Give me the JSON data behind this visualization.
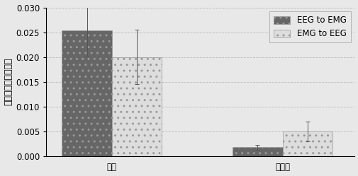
{
  "groups": [
    "患者",
    "健康人"
  ],
  "series": [
    "EEG to EMG",
    "EMG to EEG"
  ],
  "values": [
    [
      0.0253,
      0.02
    ],
    [
      0.0018,
      0.005
    ]
  ],
  "errors": [
    [
      0.005,
      0.0055
    ],
    [
      0.0005,
      0.002
    ]
  ],
  "bar_colors": [
    "#666666",
    "#dddddd"
  ],
  "ylabel": "双侧状态转移率差値",
  "ylim": [
    0,
    0.03
  ],
  "yticks": [
    0,
    0.005,
    0.01,
    0.015,
    0.02,
    0.025,
    0.03
  ],
  "grid_color": "#bbbbbb",
  "bar_width": 0.38,
  "legend_fontsize": 8.5,
  "ylabel_fontsize": 9,
  "tick_fontsize": 8.5,
  "bg_color": "#e8e8e8"
}
